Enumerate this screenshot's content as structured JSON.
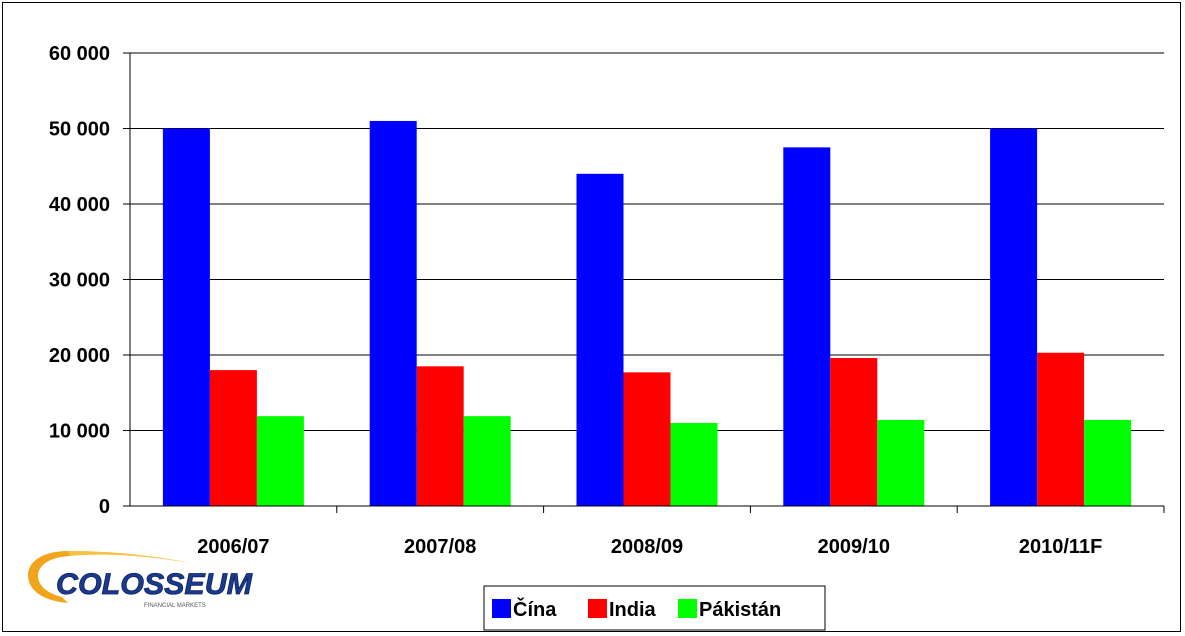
{
  "chart_data": {
    "type": "bar",
    "title": "",
    "xlabel": "",
    "ylabel": "",
    "categories": [
      "2006/07",
      "2007/08",
      "2008/09",
      "2009/10",
      "2010/11F"
    ],
    "series": [
      {
        "name": "Čína",
        "color": "#0000FF",
        "values": [
          50000,
          51000,
          44000,
          47500,
          50000
        ]
      },
      {
        "name": "India",
        "color": "#FF0000",
        "values": [
          18000,
          18500,
          17700,
          19600,
          20300
        ]
      },
      {
        "name": "Pákistán",
        "color": "#00FF00",
        "values": [
          11900,
          11900,
          11000,
          11400,
          11400
        ]
      }
    ],
    "ylim": [
      0,
      60000
    ],
    "yticks": [
      0,
      10000,
      20000,
      30000,
      40000,
      50000,
      60000
    ],
    "ytick_labels": [
      "0",
      "10 000",
      "20 000",
      "30 000",
      "40 000",
      "50 000",
      "60 000"
    ],
    "grid": true,
    "legend_position": "bottom-center"
  },
  "logo": {
    "text": "COLOSSEUM",
    "subtext": "FINANCIAL MARKETS",
    "name": "colosseum-logo-icon"
  }
}
